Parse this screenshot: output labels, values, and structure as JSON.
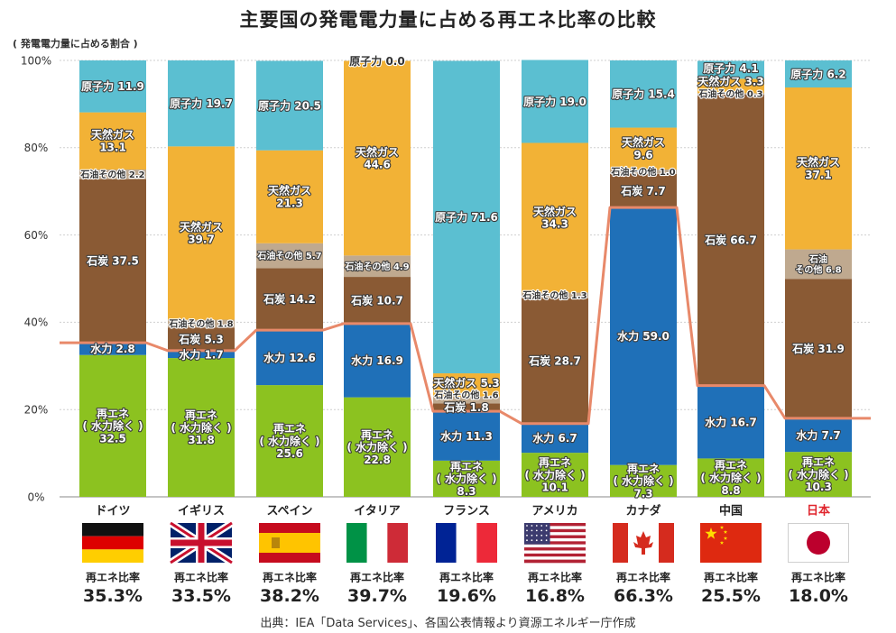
{
  "chart_data": {
    "type": "bar",
    "stacked": true,
    "title": "主要国の発電電力量に占める再エネ比率の比較",
    "ylabel": "( 発電電力量に占める割合 )",
    "ylim": [
      0,
      100
    ],
    "yticks": [
      "0%",
      "20%",
      "40%",
      "60%",
      "80%",
      "100%"
    ],
    "grid": true,
    "categories": [
      "ドイツ",
      "イギリス",
      "スペイン",
      "イタリア",
      "フランス",
      "アメリカ",
      "カナダ",
      "中国",
      "日本"
    ],
    "highlight_category": "日本",
    "highlight_color": "#e0262e",
    "colors": {
      "renew": "#8cc220",
      "hydro": "#1f70b8",
      "coal": "#8a5a34",
      "oil": "#bfa98f",
      "gas": "#f2b236",
      "nuclear": "#5bbfd1",
      "line": "#e8896a"
    },
    "series": [
      {
        "key": "renew",
        "name": "再エネ(水力除く)",
        "labels": [
          "再エネ\n( 水力除く )\n32.5",
          "再エネ\n( 水力除く )\n31.8",
          "再エネ\n( 水力除く )\n25.6",
          "再エネ\n( 水力除く )\n22.8",
          "再エネ\n( 水力除く )\n8.3",
          "再エネ\n( 水力除く )\n10.1",
          "再エネ\n( 水力除く )\n7.3",
          "再エネ\n( 水力除く )\n8.8",
          "再エネ\n( 水力除く )\n10.3"
        ],
        "values": [
          32.5,
          31.8,
          25.6,
          22.8,
          8.3,
          10.1,
          7.3,
          8.8,
          10.3
        ]
      },
      {
        "key": "hydro",
        "name": "水力",
        "labels": [
          "水力 2.8",
          "水力 1.7",
          "水力 12.6",
          "水力 16.9",
          "水力 11.3",
          "水力 6.7",
          "水力 59.0",
          "水力 16.7",
          "水力 7.7"
        ],
        "values": [
          2.8,
          1.7,
          12.6,
          16.9,
          11.3,
          6.7,
          59.0,
          16.7,
          7.7
        ]
      },
      {
        "key": "coal",
        "name": "石炭",
        "labels": [
          "石炭 37.5",
          "石炭 5.3",
          "石炭 14.2",
          "石炭 10.7",
          "石炭 1.8",
          "石炭 28.7",
          "石炭 7.7",
          "石炭 66.7",
          "石炭 31.9"
        ],
        "values": [
          37.5,
          5.3,
          14.2,
          10.7,
          1.8,
          28.7,
          7.7,
          66.7,
          31.9
        ]
      },
      {
        "key": "oil",
        "name": "石油その他",
        "labels": [
          "石油その他 2.2",
          "石油その他 1.8",
          "石油その他 5.7",
          "石油その他 4.9",
          "石油その他 1.6",
          "石油その他 1.3",
          "石油その他 1.0",
          "石油その他 0.3",
          "石油\nその他 6.8"
        ],
        "values": [
          2.2,
          1.8,
          5.7,
          4.9,
          1.6,
          1.3,
          1.0,
          0.3,
          6.8
        ]
      },
      {
        "key": "gas",
        "name": "天然ガス",
        "labels": [
          "天然ガス\n13.1",
          "天然ガス\n39.7",
          "天然ガス\n21.3",
          "天然ガス\n44.6",
          "天然ガス 5.3",
          "天然ガス\n34.3",
          "天然ガス\n9.6",
          "天然ガス 3.3",
          "天然ガス\n37.1"
        ],
        "values": [
          13.1,
          39.7,
          21.3,
          44.6,
          5.3,
          34.3,
          9.6,
          3.3,
          37.1
        ]
      },
      {
        "key": "nuclear",
        "name": "原子力",
        "labels": [
          "原子力 11.9",
          "原子力 19.7",
          "原子力 20.5",
          "原子力 0.0",
          "原子力 71.6",
          "原子力 19.0",
          "原子力 15.4",
          "原子力 4.1",
          "原子力 6.2"
        ],
        "values": [
          11.9,
          19.7,
          20.5,
          0.0,
          71.6,
          19.0,
          15.4,
          4.1,
          6.2
        ]
      }
    ],
    "renewable_ratio": {
      "label": "再エネ比率",
      "values": [
        35.3,
        33.5,
        38.2,
        39.7,
        19.6,
        16.8,
        66.3,
        25.5,
        18.0
      ],
      "display": [
        "35.3%",
        "33.5%",
        "38.2%",
        "39.7%",
        "19.6%",
        "16.8%",
        "66.3%",
        "25.5%",
        "18.0%"
      ]
    },
    "flags": [
      "germany-flag",
      "uk-flag",
      "spain-flag",
      "italy-flag",
      "france-flag",
      "usa-flag",
      "canada-flag",
      "china-flag",
      "japan-flag"
    ]
  },
  "source": "出典：IEA「Data Services」、各国公表情報より資源エネルギー庁作成"
}
